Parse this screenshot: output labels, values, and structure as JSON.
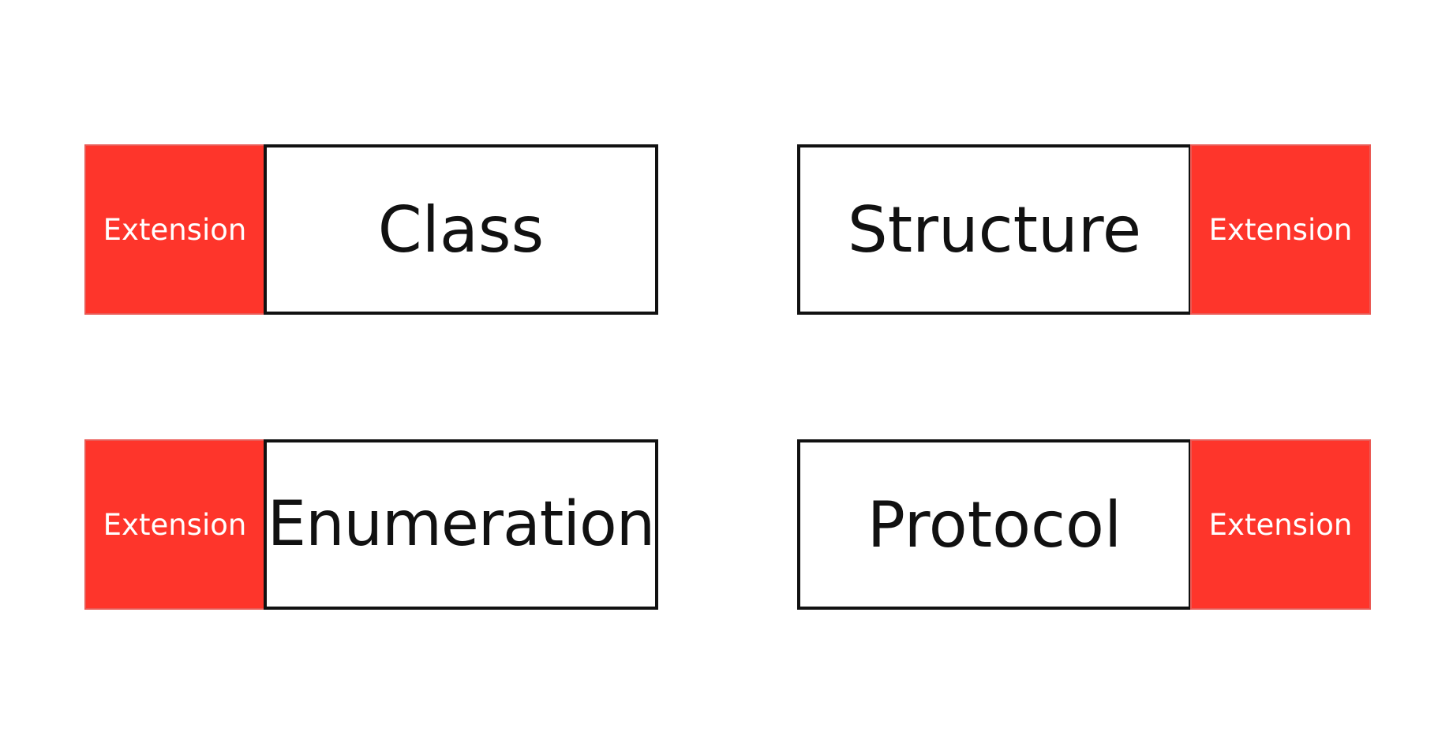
{
  "accent_color": "#fe352b",
  "items": [
    {
      "type": "Class",
      "extension": "Extension",
      "extension_side": "left"
    },
    {
      "type": "Structure",
      "extension": "Extension",
      "extension_side": "right"
    },
    {
      "type": "Enumeration",
      "extension": "Extension",
      "extension_side": "left"
    },
    {
      "type": "Protocol",
      "extension": "Extension",
      "extension_side": "right"
    }
  ]
}
